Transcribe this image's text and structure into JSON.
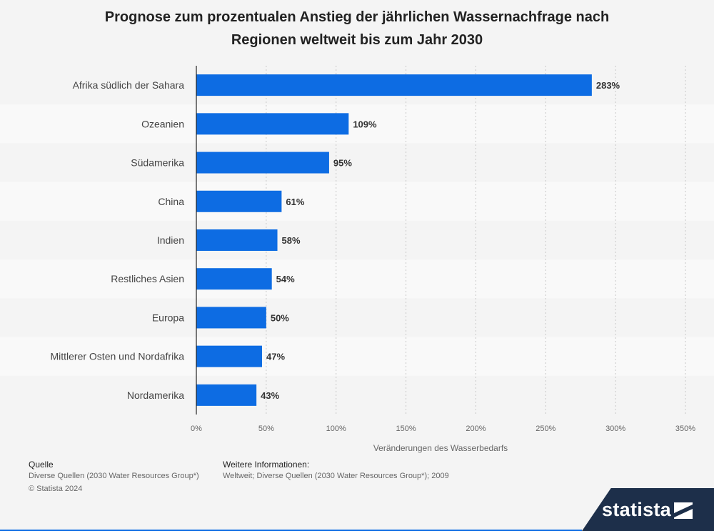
{
  "title": "Prognose zum prozentualen Anstieg der jährlichen Wassernachfrage nach Regionen weltweit bis zum Jahr 2030",
  "chart_data": {
    "type": "bar",
    "orientation": "horizontal",
    "categories": [
      "Afrika südlich der Sahara",
      "Ozeanien",
      "Südamerika",
      "China",
      "Indien",
      "Restliches Asien",
      "Europa",
      "Mittlerer Osten und Nordafrika",
      "Nordamerika"
    ],
    "values": [
      283,
      109,
      95,
      61,
      58,
      54,
      50,
      47,
      43
    ],
    "value_labels": [
      "283%",
      "109%",
      "95%",
      "61%",
      "58%",
      "54%",
      "50%",
      "47%",
      "43%"
    ],
    "xlim": [
      0,
      350
    ],
    "xticks": [
      0,
      50,
      100,
      150,
      200,
      250,
      300,
      350
    ],
    "xtick_labels": [
      "0%",
      "50%",
      "100%",
      "150%",
      "200%",
      "250%",
      "300%",
      "350%"
    ],
    "xlabel": "Veränderungen des Wasserbedarfs",
    "ylabel": "",
    "bar_color": "#0d6ce3",
    "grid": true
  },
  "footer": {
    "source_heading": "Quelle",
    "source_text": "Diverse Quellen (2030 Water Resources Group*)",
    "copyright": "© Statista 2024",
    "info_heading": "Weitere Informationen:",
    "info_text": "Weltweit; Diverse Quellen (2030 Water Resources Group*); 2009"
  },
  "logo": {
    "text": "statista"
  }
}
